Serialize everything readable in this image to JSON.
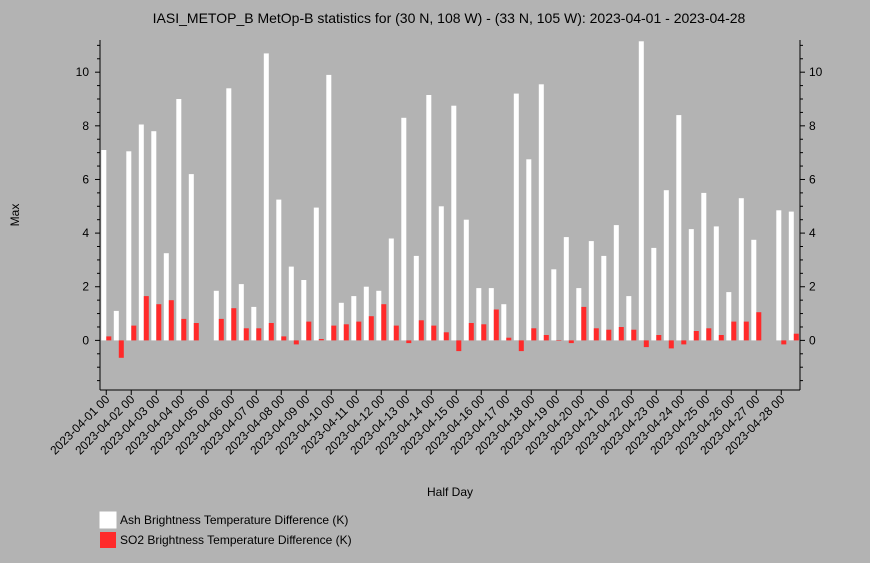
{
  "chart_data": {
    "type": "bar",
    "title": "IASI_METOP_B MetOp-B statistics for (30 N, 108 W) - (33 N, 105 W): 2023-04-01 - 2023-04-28",
    "xlabel": "Half Day",
    "ylabel": "Max",
    "ylim": [
      -1.85,
      11.2
    ],
    "yticks": [
      0,
      2,
      4,
      6,
      8,
      10
    ],
    "grid": false,
    "legend_position": "bottom-left",
    "categories": [
      "2023-04-01 00",
      "2023-04-01 12",
      "2023-04-02 00",
      "2023-04-02 12",
      "2023-04-03 00",
      "2023-04-03 12",
      "2023-04-04 00",
      "2023-04-04 12",
      "2023-04-05 00",
      "2023-04-05 12",
      "2023-04-06 00",
      "2023-04-06 12",
      "2023-04-07 00",
      "2023-04-07 12",
      "2023-04-08 00",
      "2023-04-08 12",
      "2023-04-09 00",
      "2023-04-09 12",
      "2023-04-10 00",
      "2023-04-10 12",
      "2023-04-11 00",
      "2023-04-11 12",
      "2023-04-12 00",
      "2023-04-12 12",
      "2023-04-13 00",
      "2023-04-13 12",
      "2023-04-14 00",
      "2023-04-14 12",
      "2023-04-15 00",
      "2023-04-15 12",
      "2023-04-16 00",
      "2023-04-16 12",
      "2023-04-17 00",
      "2023-04-17 12",
      "2023-04-18 00",
      "2023-04-18 12",
      "2023-04-19 00",
      "2023-04-19 12",
      "2023-04-20 00",
      "2023-04-20 12",
      "2023-04-21 00",
      "2023-04-21 12",
      "2023-04-22 00",
      "2023-04-22 12",
      "2023-04-23 00",
      "2023-04-23 12",
      "2023-04-24 00",
      "2023-04-24 12",
      "2023-04-25 00",
      "2023-04-25 12",
      "2023-04-26 00",
      "2023-04-26 12",
      "2023-04-27 00",
      "2023-04-27 12",
      "2023-04-28 00",
      "2023-04-28 12"
    ],
    "tick_labels": [
      "2023-04-01 00",
      "2023-04-02 00",
      "2023-04-03 00",
      "2023-04-04 00",
      "2023-04-05 00",
      "2023-04-06 00",
      "2023-04-07 00",
      "2023-04-08 00",
      "2023-04-09 00",
      "2023-04-10 00",
      "2023-04-11 00",
      "2023-04-12 00",
      "2023-04-13 00",
      "2023-04-14 00",
      "2023-04-15 00",
      "2023-04-16 00",
      "2023-04-17 00",
      "2023-04-18 00",
      "2023-04-19 00",
      "2023-04-20 00",
      "2023-04-21 00",
      "2023-04-22 00",
      "2023-04-23 00",
      "2023-04-24 00",
      "2023-04-25 00",
      "2023-04-26 00",
      "2023-04-27 00",
      "2023-04-28 00"
    ],
    "series": [
      {
        "name": "Ash Brightness Temperature Difference (K)",
        "color": "#ffffff",
        "values": [
          7.1,
          1.1,
          7.05,
          8.05,
          7.8,
          3.25,
          9.0,
          6.2,
          null,
          1.85,
          9.4,
          2.1,
          1.25,
          10.7,
          5.25,
          2.75,
          2.25,
          4.95,
          9.9,
          1.4,
          1.65,
          2.0,
          1.85,
          3.8,
          8.3,
          3.15,
          9.15,
          5.0,
          8.75,
          4.5,
          1.95,
          1.95,
          1.35,
          9.2,
          6.75,
          9.55,
          2.65,
          3.85,
          1.95,
          3.7,
          3.15,
          4.3,
          1.65,
          11.15,
          3.45,
          5.6,
          8.4,
          4.15,
          5.5,
          4.25,
          1.8,
          5.3,
          3.75,
          null,
          4.85,
          4.8
        ]
      },
      {
        "name": "SO2 Brightness Temperature Difference (K)",
        "color": "#ff2a2a",
        "values": [
          0.15,
          -0.65,
          0.55,
          1.65,
          1.35,
          1.5,
          0.8,
          0.65,
          null,
          0.8,
          1.2,
          0.45,
          0.45,
          0.65,
          0.15,
          -0.15,
          0.7,
          0.05,
          0.55,
          0.6,
          0.7,
          0.9,
          1.35,
          0.55,
          -0.1,
          0.75,
          0.55,
          0.3,
          -0.4,
          0.65,
          0.6,
          1.15,
          0.1,
          -0.4,
          0.45,
          0.2,
          0.0,
          -0.1,
          1.25,
          0.45,
          0.4,
          0.5,
          0.4,
          -0.25,
          0.2,
          -0.3,
          -0.15,
          0.35,
          0.45,
          0.2,
          0.7,
          0.7,
          1.05,
          null,
          -0.15,
          0.25
        ]
      }
    ]
  }
}
